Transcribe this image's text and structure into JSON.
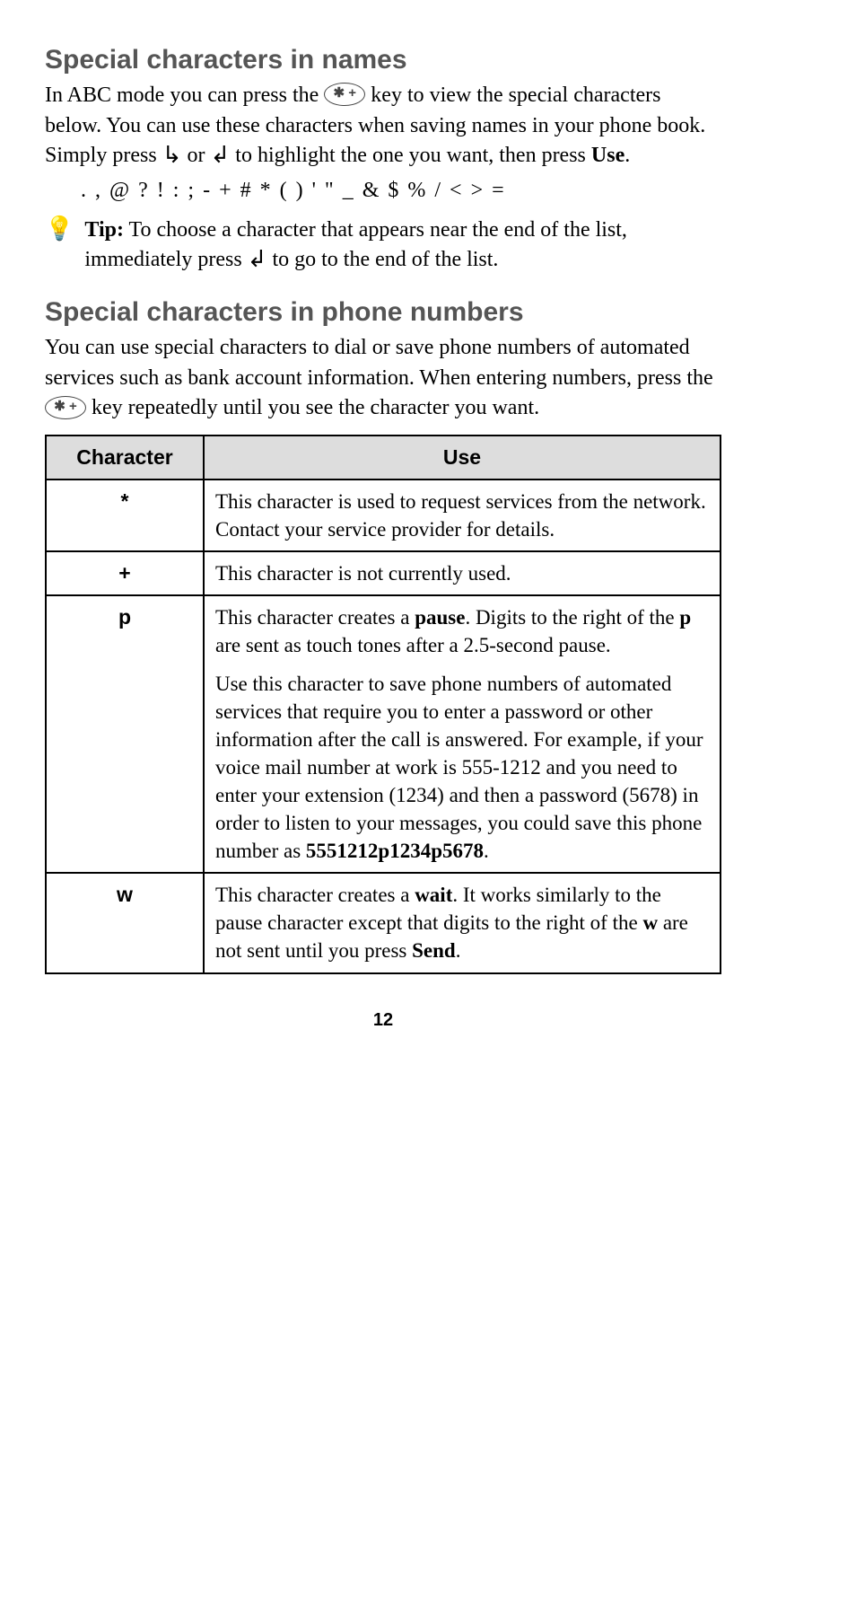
{
  "section1": {
    "heading": "Special characters in names",
    "p1a": "In ABC mode you can press the ",
    "p1b": " key to view the special characters below. You can use these characters when saving names in your phone book. Simply press ",
    "p1c": " or ",
    "p1d": " to highlight the one you want, then press ",
    "useWord": "Use",
    "p1e": ".",
    "charlist": ". , @ ? ! : ; - + # * ( ) ' \" _ & $ % / < > ="
  },
  "tip": {
    "label": "Tip:",
    "a": " To choose a character that appears near the end of the list, immediately press ",
    "b": " to go to the end of the list."
  },
  "section2": {
    "heading": "Special characters in phone numbers",
    "p1a": "You can use special characters to dial or save phone numbers of automated services such as bank account information. When entering numbers, press the ",
    "p1b": " key repeatedly until you see the character you want."
  },
  "table": {
    "colCharacter": "Character",
    "colUse": "Use",
    "rows": {
      "r0": {
        "char": "*",
        "use": "This character is used to request services from the network. Contact your service provider for details."
      },
      "r1": {
        "char": "+",
        "use": "This character is not currently used."
      },
      "r2": {
        "char": "p",
        "use1a": "This character creates a ",
        "use1bold": "pause",
        "use1b": ". Digits to the right of the ",
        "use1pbold": "p",
        "use1c": " are sent as touch tones after a 2.5-second pause.",
        "use2a": "Use this character to save phone numbers of automated services that require you to enter a password or other information after the call is answered. For example, if your voice mail number at work is 555-1212 and you need to enter your extension (1234) and then a password (5678) in order to listen to your messages, you could save this phone number as ",
        "use2bold": "5551212p1234p5678",
        "use2b": "."
      },
      "r3": {
        "char": "w",
        "use1a": "This character creates a ",
        "use1bold": "wait",
        "use1b": ". It works similarly to the pause character except that digits to the right of the ",
        "use1wbold": "w",
        "use1c": " are not sent until you press ",
        "use1send": "Send",
        "use1d": "."
      }
    }
  },
  "pageNumber": "12",
  "keyStarLabel": "✱ +"
}
